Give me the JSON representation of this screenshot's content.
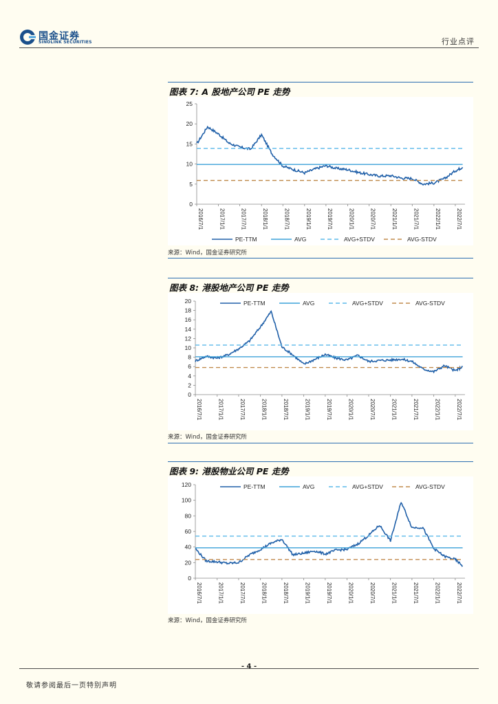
{
  "header": {
    "logo_cn": "国金证券",
    "logo_en": "SINOLINK SECURITIES",
    "section_label": "行业点评",
    "colors": {
      "brand": "#1a4f8b",
      "accent": "#2b6cb0"
    }
  },
  "figures": [
    {
      "title": "图表 7:  A 股地产公司 PE 走势",
      "source": "来源：Wind，国金证券研究所"
    },
    {
      "title": "图表 8:  港股地产公司 PE 走势",
      "source": "来源：Wind，国金证券研究所"
    },
    {
      "title": "图表 9:  港股物业公司 PE 走势",
      "source": "来源：Wind，国金证券研究所"
    }
  ],
  "chart_data": [
    {
      "type": "line",
      "legend_position": "bottom",
      "grid": false,
      "ylim": [
        0,
        25
      ],
      "yticks": [
        0,
        5,
        10,
        15,
        20,
        25
      ],
      "x_tick_labels": [
        "2016/7/1",
        "2017/1/1",
        "2017/7/1",
        "2018/1/1",
        "2018/7/1",
        "2019/1/1",
        "2019/7/1",
        "2020/1/1",
        "2020/7/1",
        "2021/1/1",
        "2021/7/1",
        "2022/1/1",
        "2022/7/1"
      ],
      "x": [
        "2016/7/1",
        "2016/10/1",
        "2017/1/1",
        "2017/4/1",
        "2017/7/1",
        "2017/10/1",
        "2018/1/1",
        "2018/4/1",
        "2018/7/1",
        "2018/10/1",
        "2019/1/1",
        "2019/4/1",
        "2019/7/1",
        "2019/10/1",
        "2020/1/1",
        "2020/4/1",
        "2020/7/1",
        "2020/10/1",
        "2021/1/1",
        "2021/4/1",
        "2021/7/1",
        "2021/10/1",
        "2022/1/1",
        "2022/4/1",
        "2022/7/1",
        "2022/9/1"
      ],
      "series": [
        {
          "name": "PE-TTM",
          "style": "solid",
          "color": "#1f5fa8",
          "values": [
            15,
            19.3,
            17.5,
            15.2,
            14.2,
            13.7,
            17.3,
            12.5,
            9.5,
            8.6,
            7.8,
            8.8,
            9.6,
            8.9,
            8.6,
            7.9,
            7.4,
            7.0,
            7.1,
            6.5,
            6.4,
            5.0,
            5.3,
            6.4,
            8.3,
            9.2
          ]
        },
        {
          "name": "AVG",
          "style": "solid",
          "color": "#3aa0d8",
          "values": [
            9.9,
            9.9,
            9.9,
            9.9,
            9.9,
            9.9,
            9.9,
            9.9,
            9.9,
            9.9,
            9.9,
            9.9,
            9.9,
            9.9,
            9.9,
            9.9,
            9.9,
            9.9,
            9.9,
            9.9,
            9.9,
            9.9,
            9.9,
            9.9,
            9.9,
            9.9
          ]
        },
        {
          "name": "AVG+STDV",
          "style": "dashed",
          "color": "#5ab8ea",
          "values": [
            13.9,
            13.9,
            13.9,
            13.9,
            13.9,
            13.9,
            13.9,
            13.9,
            13.9,
            13.9,
            13.9,
            13.9,
            13.9,
            13.9,
            13.9,
            13.9,
            13.9,
            13.9,
            13.9,
            13.9,
            13.9,
            13.9,
            13.9,
            13.9,
            13.9,
            13.9
          ]
        },
        {
          "name": "AVG-STDV",
          "style": "dashed",
          "color": "#c08a4c",
          "values": [
            5.9,
            5.9,
            5.9,
            5.9,
            5.9,
            5.9,
            5.9,
            5.9,
            5.9,
            5.9,
            5.9,
            5.9,
            5.9,
            5.9,
            5.9,
            5.9,
            5.9,
            5.9,
            5.9,
            5.9,
            5.9,
            5.9,
            5.9,
            5.9,
            5.9,
            5.9
          ]
        }
      ]
    },
    {
      "type": "line",
      "legend_position": "top",
      "grid": false,
      "ylim": [
        0,
        20
      ],
      "yticks": [
        0,
        2,
        4,
        6,
        8,
        10,
        12,
        14,
        16,
        18,
        20
      ],
      "x_tick_labels": [
        "2016/7/1",
        "2017/1/1",
        "2017/7/1",
        "2018/1/1",
        "2018/7/1",
        "2019/1/1",
        "2019/7/1",
        "2020/1/1",
        "2020/7/1",
        "2021/1/1",
        "2021/7/1",
        "2022/1/1",
        "2022/7/1"
      ],
      "x": [
        "2016/7/1",
        "2016/10/1",
        "2017/1/1",
        "2017/4/1",
        "2017/7/1",
        "2017/10/1",
        "2018/1/1",
        "2018/4/1",
        "2018/7/1",
        "2018/10/1",
        "2019/1/1",
        "2019/4/1",
        "2019/7/1",
        "2019/10/1",
        "2020/1/1",
        "2020/4/1",
        "2020/7/1",
        "2020/10/1",
        "2021/1/1",
        "2021/4/1",
        "2021/7/1",
        "2021/10/1",
        "2022/1/1",
        "2022/4/1",
        "2022/7/1",
        "2022/9/1"
      ],
      "series": [
        {
          "name": "PE-TTM",
          "style": "solid",
          "color": "#1f5fa8",
          "values": [
            7.2,
            8.2,
            7.8,
            8.5,
            9.8,
            11.5,
            14.5,
            17.8,
            10.2,
            8.5,
            6.5,
            7.5,
            8.6,
            7.8,
            7.4,
            8.4,
            7.1,
            7.3,
            7.4,
            7.6,
            7.1,
            5.5,
            4.9,
            6.2,
            5.1,
            6.0
          ]
        },
        {
          "name": "AVG",
          "style": "solid",
          "color": "#3aa0d8",
          "values": [
            8.1,
            8.1,
            8.1,
            8.1,
            8.1,
            8.1,
            8.1,
            8.1,
            8.1,
            8.1,
            8.1,
            8.1,
            8.1,
            8.1,
            8.1,
            8.1,
            8.1,
            8.1,
            8.1,
            8.1,
            8.1,
            8.1,
            8.1,
            8.1,
            8.1,
            8.1
          ]
        },
        {
          "name": "AVG+STDV",
          "style": "dashed",
          "color": "#5ab8ea",
          "values": [
            10.6,
            10.6,
            10.6,
            10.6,
            10.6,
            10.6,
            10.6,
            10.6,
            10.6,
            10.6,
            10.6,
            10.6,
            10.6,
            10.6,
            10.6,
            10.6,
            10.6,
            10.6,
            10.6,
            10.6,
            10.6,
            10.6,
            10.6,
            10.6,
            10.6,
            10.6
          ]
        },
        {
          "name": "AVG-STDV",
          "style": "dashed",
          "color": "#c08a4c",
          "values": [
            5.8,
            5.8,
            5.8,
            5.8,
            5.8,
            5.8,
            5.8,
            5.8,
            5.8,
            5.8,
            5.8,
            5.8,
            5.8,
            5.8,
            5.8,
            5.8,
            5.8,
            5.8,
            5.8,
            5.8,
            5.8,
            5.8,
            5.8,
            5.8,
            5.8,
            5.8
          ]
        }
      ]
    },
    {
      "type": "line",
      "legend_position": "top",
      "grid": false,
      "ylim": [
        0,
        120
      ],
      "yticks": [
        0,
        20,
        40,
        60,
        80,
        100,
        120
      ],
      "x_tick_labels": [
        "2016/7/1",
        "2017/1/1",
        "2017/7/1",
        "2018/1/1",
        "2018/7/1",
        "2019/1/1",
        "2019/7/1",
        "2020/1/1",
        "2020/7/1",
        "2021/1/1",
        "2021/7/1",
        "2022/1/1",
        "2022/7/1"
      ],
      "x": [
        "2016/7/1",
        "2016/10/1",
        "2017/1/1",
        "2017/4/1",
        "2017/7/1",
        "2017/10/1",
        "2018/1/1",
        "2018/4/1",
        "2018/7/1",
        "2018/10/1",
        "2019/1/1",
        "2019/4/1",
        "2019/7/1",
        "2019/10/1",
        "2020/1/1",
        "2020/4/1",
        "2020/7/1",
        "2020/10/1",
        "2021/1/1",
        "2021/4/1",
        "2021/7/1",
        "2021/10/1",
        "2022/1/1",
        "2022/4/1",
        "2022/7/1",
        "2022/9/1"
      ],
      "series": [
        {
          "name": "PE-TTM",
          "style": "solid",
          "color": "#1f5fa8",
          "values": [
            38,
            22,
            21,
            19,
            20,
            30,
            37,
            45,
            50,
            30,
            32,
            35,
            31,
            36,
            37,
            44,
            55,
            68,
            48,
            98,
            65,
            65,
            38,
            28,
            24,
            16
          ]
        },
        {
          "name": "AVG",
          "style": "solid",
          "color": "#3aa0d8",
          "values": [
            39,
            39,
            39,
            39,
            39,
            39,
            39,
            39,
            39,
            39,
            39,
            39,
            39,
            39,
            39,
            39,
            39,
            39,
            39,
            39,
            39,
            39,
            39,
            39,
            39,
            39
          ]
        },
        {
          "name": "AVG+STDV",
          "style": "dashed",
          "color": "#5ab8ea",
          "values": [
            54,
            54,
            54,
            54,
            54,
            54,
            54,
            54,
            54,
            54,
            54,
            54,
            54,
            54,
            54,
            54,
            54,
            54,
            54,
            54,
            54,
            54,
            54,
            54,
            54,
            54
          ]
        },
        {
          "name": "AVG-STDV",
          "style": "dashed",
          "color": "#c08a4c",
          "values": [
            24,
            24,
            24,
            24,
            24,
            24,
            24,
            24,
            24,
            24,
            24,
            24,
            24,
            24,
            24,
            24,
            24,
            24,
            24,
            24,
            24,
            24,
            24,
            24,
            24,
            24
          ]
        }
      ]
    }
  ],
  "footer": {
    "page_number": "- 4 -",
    "disclaimer": "敬请参阅最后一页特别声明"
  }
}
